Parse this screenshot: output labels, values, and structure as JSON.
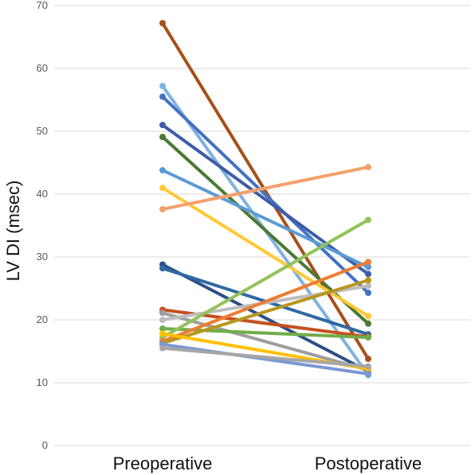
{
  "chart_data": {
    "type": "line",
    "title": "",
    "xlabel": "",
    "ylabel": "LV DI (msec)",
    "categories": [
      "Preoperative",
      "Postoperative"
    ],
    "ylim": [
      0,
      70
    ],
    "yticks": [
      0,
      10,
      20,
      30,
      40,
      50,
      60,
      70
    ],
    "grid": true,
    "legend": "none",
    "series": [
      {
        "values": [
          67.2,
          13.8
        ],
        "color": "#a5501b"
      },
      {
        "values": [
          57.2,
          11.2
        ],
        "color": "#7fb2e0"
      },
      {
        "values": [
          55.5,
          24.3
        ],
        "color": "#4472c4"
      },
      {
        "values": [
          51.0,
          27.3
        ],
        "color": "#3e5ca8"
      },
      {
        "values": [
          49.1,
          19.4
        ],
        "color": "#4a7a34"
      },
      {
        "values": [
          43.8,
          28.4
        ],
        "color": "#5b9bd5"
      },
      {
        "values": [
          41.0,
          20.6
        ],
        "color": "#ffc935"
      },
      {
        "values": [
          37.6,
          44.3
        ],
        "color": "#f4a06c"
      },
      {
        "values": [
          28.8,
          11.8
        ],
        "color": "#2f4f86"
      },
      {
        "values": [
          28.2,
          17.7
        ],
        "color": "#2e6aa4"
      },
      {
        "values": [
          21.6,
          17.3
        ],
        "color": "#c5501f"
      },
      {
        "values": [
          21.1,
          12.0
        ],
        "color": "#9e9e9e"
      },
      {
        "values": [
          20.0,
          25.4
        ],
        "color": "#bdbdbd"
      },
      {
        "values": [
          18.6,
          17.2
        ],
        "color": "#70ad47"
      },
      {
        "values": [
          17.2,
          35.9
        ],
        "color": "#92c35a"
      },
      {
        "values": [
          16.6,
          29.2
        ],
        "color": "#ed7d31"
      },
      {
        "values": [
          16.3,
          26.3
        ],
        "color": "#b8961e"
      },
      {
        "values": [
          17.8,
          12.2
        ],
        "color": "#ffc000"
      },
      {
        "values": [
          16.1,
          11.4
        ],
        "color": "#7a97d6"
      },
      {
        "values": [
          15.5,
          12.6
        ],
        "color": "#a6a6a6"
      }
    ]
  }
}
